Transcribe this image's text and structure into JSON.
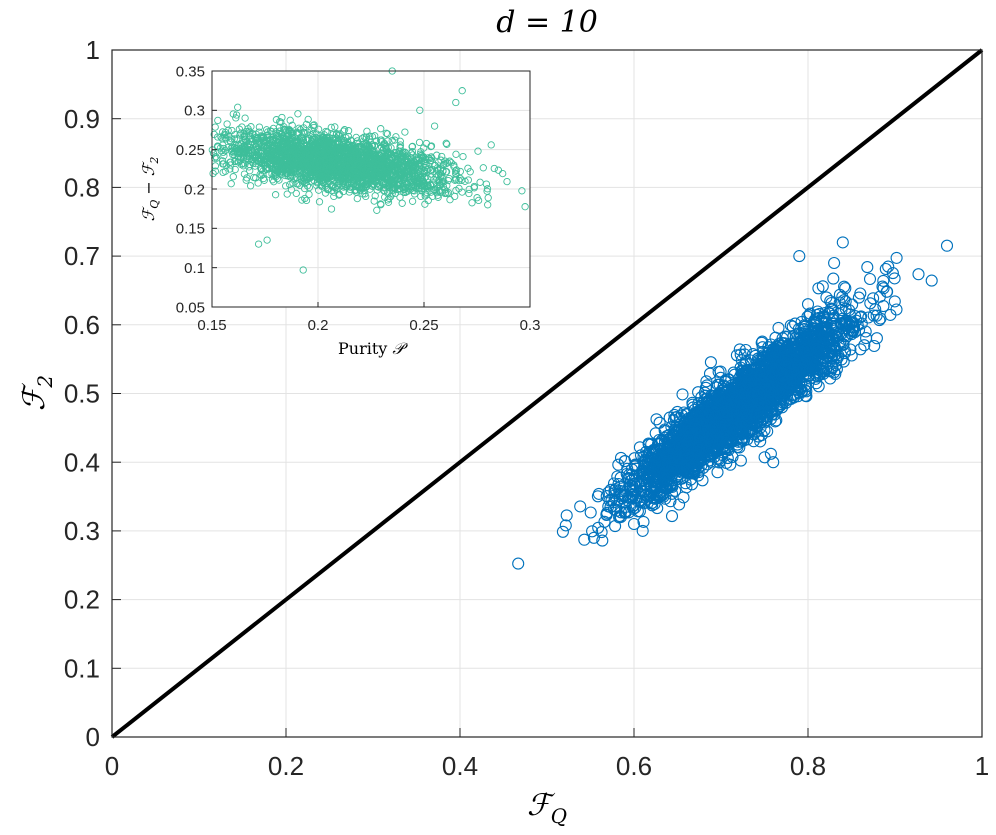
{
  "chart_data": [
    {
      "type": "scatter",
      "title": "d = 10",
      "xlabel": "ℱQ",
      "ylabel": "ℱ2",
      "xlim": [
        0,
        1
      ],
      "ylim": [
        0,
        1
      ],
      "xticks": [
        "0",
        "0.2",
        "0.4",
        "0.6",
        "0.8",
        "1"
      ],
      "yticks": [
        "0",
        "0.1",
        "0.2",
        "0.3",
        "0.4",
        "0.5",
        "0.6",
        "0.7",
        "0.8",
        "0.9",
        "1"
      ],
      "grid": true,
      "reference_line": {
        "x": [
          0,
          1
        ],
        "y": [
          0,
          1
        ],
        "color": "#000000"
      },
      "series": [
        {
          "color": "#0072BD",
          "marker": "open-circle",
          "cluster": {
            "center": [
              0.72,
              0.48
            ],
            "spread_major": 0.085,
            "spread_minor": 0.018,
            "slope": 1.05
          },
          "outliers": [
            [
              0.6,
              0.31
            ],
            [
              0.61,
              0.3
            ],
            [
              0.84,
              0.72
            ],
            [
              0.83,
              0.69
            ],
            [
              0.79,
              0.7
            ],
            [
              0.65,
              0.39
            ],
            [
              0.8,
              0.63
            ],
            [
              0.62,
              0.34
            ],
            [
              0.76,
              0.4
            ]
          ]
        }
      ]
    },
    {
      "type": "scatter",
      "inset": true,
      "xlabel": "Purity 𝒫",
      "ylabel": "ℱQ − ℱ2",
      "xlim": [
        0.15,
        0.3
      ],
      "ylim": [
        0.05,
        0.35
      ],
      "xticks": [
        "0.15",
        "0.2",
        "0.25",
        "0.3"
      ],
      "yticks": [
        "0.05",
        "0.1",
        "0.15",
        "0.2",
        "0.25",
        "0.3",
        "0.35"
      ],
      "grid": true,
      "series": [
        {
          "color": "#3EBE9A",
          "marker": "open-circle",
          "cluster": {
            "center": [
              0.207,
              0.235
            ],
            "spread_major": 0.016,
            "spread_minor": 0.03,
            "slope": 1.8
          },
          "outliers": [
            [
              0.193,
              0.097
            ],
            [
              0.268,
              0.325
            ],
            [
              0.265,
              0.31
            ],
            [
              0.235,
              0.35
            ],
            [
              0.172,
              0.13
            ],
            [
              0.176,
              0.135
            ],
            [
              0.255,
              0.28
            ],
            [
              0.248,
              0.3
            ]
          ]
        }
      ]
    }
  ]
}
